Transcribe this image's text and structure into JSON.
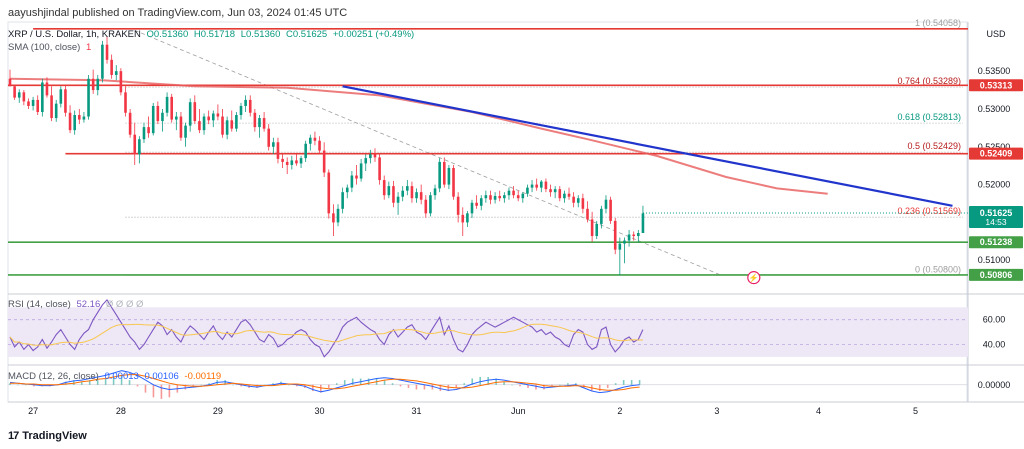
{
  "header": {
    "published": "aayushjindal published on TradingView.com, Jun 03, 2024 01:45 UTC"
  },
  "legend": {
    "symbol": "XRP / U.S. Dollar, 1h, KRAKEN",
    "open": "O0.51360",
    "high": "H0.51718",
    "low": "L0.51360",
    "close": "C0.51625",
    "change": "+0.00251 (+0.49%)",
    "sma_label": "SMA (100, close)",
    "sma_value": "1",
    "rsi_label": "RSI (14, close)",
    "rsi_value": "52.16",
    "rsi_extra": "Ø Ø Ø Ø",
    "macd_label": "MACD (12, 26, close)",
    "macd_v1": "0.00013",
    "macd_v2": "0.00106",
    "macd_v3": "-0.00119"
  },
  "brand": {
    "logo": "17",
    "name": "TradingView"
  },
  "currency": "USD",
  "colors": {
    "up": "#089981",
    "down": "#f23645",
    "sma": "#e85d5d",
    "trend": "#2135cc",
    "hline_red": "#e53935",
    "hline_green": "#43a047",
    "fib": "#9e9e9e",
    "rsi": "#7e57c2",
    "rsi_band": "#ede7f6",
    "macd": "#2962ff",
    "signal": "#ff6d00"
  },
  "chart_data": {
    "type": "candlestick",
    "title": "XRP / U.S. Dollar, 1h, KRAKEN",
    "ylim": [
      0.5058,
      0.5415
    ],
    "price_ticks": [
      {
        "value": 0.535,
        "label": "0.53500"
      },
      {
        "value": 0.53,
        "label": "0.53000"
      },
      {
        "value": 0.525,
        "label": "0.52500"
      },
      {
        "value": 0.52,
        "label": "0.52000"
      },
      {
        "value": 0.51,
        "label": "0.51000"
      }
    ],
    "x_ticks": [
      "27",
      "28",
      "29",
      "30",
      "31",
      "Jun",
      "2",
      "3",
      "4",
      "5"
    ],
    "x_tick_index": [
      5,
      24,
      45,
      67,
      88,
      110,
      132,
      153,
      175,
      196
    ],
    "candles": [
      [
        0.534,
        0.5352,
        0.533,
        0.533
      ],
      [
        0.533,
        0.5332,
        0.5312,
        0.5315
      ],
      [
        0.5315,
        0.5326,
        0.5308,
        0.5322
      ],
      [
        0.5322,
        0.5325,
        0.5305,
        0.531
      ],
      [
        0.531,
        0.5314,
        0.53,
        0.5304
      ],
      [
        0.5304,
        0.5316,
        0.5298,
        0.5312
      ],
      [
        0.5312,
        0.5318,
        0.5292,
        0.5296
      ],
      [
        0.5296,
        0.534,
        0.529,
        0.5335
      ],
      [
        0.5335,
        0.5342,
        0.5315,
        0.5318
      ],
      [
        0.5318,
        0.533,
        0.5284,
        0.5288
      ],
      [
        0.5288,
        0.5312,
        0.5283,
        0.5307
      ],
      [
        0.5307,
        0.533,
        0.5302,
        0.5326
      ],
      [
        0.5326,
        0.5331,
        0.529,
        0.5295
      ],
      [
        0.5295,
        0.5305,
        0.5268,
        0.5272
      ],
      [
        0.5272,
        0.5298,
        0.5266,
        0.5292
      ],
      [
        0.5292,
        0.53,
        0.528,
        0.5286
      ],
      [
        0.5286,
        0.5296,
        0.5282,
        0.529
      ],
      [
        0.529,
        0.5345,
        0.5286,
        0.534
      ],
      [
        0.534,
        0.5352,
        0.532,
        0.5325
      ],
      [
        0.5325,
        0.5345,
        0.5318,
        0.534
      ],
      [
        0.534,
        0.539,
        0.5335,
        0.5385
      ],
      [
        0.5385,
        0.5396,
        0.536,
        0.5365
      ],
      [
        0.5365,
        0.5372,
        0.534,
        0.5345
      ],
      [
        0.5345,
        0.5358,
        0.5338,
        0.535
      ],
      [
        0.535,
        0.5354,
        0.5318,
        0.5322
      ],
      [
        0.5322,
        0.533,
        0.529,
        0.5295
      ],
      [
        0.5295,
        0.53,
        0.5262,
        0.5266
      ],
      [
        0.5266,
        0.5282,
        0.5226,
        0.524
      ],
      [
        0.524,
        0.5264,
        0.5228,
        0.526
      ],
      [
        0.526,
        0.5282,
        0.5255,
        0.5276
      ],
      [
        0.5276,
        0.529,
        0.5262,
        0.5268
      ],
      [
        0.5268,
        0.5308,
        0.5265,
        0.5304
      ],
      [
        0.5304,
        0.531,
        0.528,
        0.5284
      ],
      [
        0.5284,
        0.53,
        0.527,
        0.5295
      ],
      [
        0.5295,
        0.5322,
        0.529,
        0.5316
      ],
      [
        0.5316,
        0.532,
        0.5282,
        0.5286
      ],
      [
        0.5286,
        0.5296,
        0.5272,
        0.529
      ],
      [
        0.529,
        0.5296,
        0.5258,
        0.5262
      ],
      [
        0.5262,
        0.5282,
        0.525,
        0.5278
      ],
      [
        0.5278,
        0.5314,
        0.527,
        0.5309
      ],
      [
        0.5309,
        0.5318,
        0.528,
        0.5284
      ],
      [
        0.5284,
        0.53,
        0.5268,
        0.5272
      ],
      [
        0.5272,
        0.5294,
        0.5266,
        0.529
      ],
      [
        0.529,
        0.5298,
        0.528,
        0.5285
      ],
      [
        0.5285,
        0.5298,
        0.5276,
        0.5294
      ],
      [
        0.5294,
        0.5306,
        0.5285,
        0.529
      ],
      [
        0.529,
        0.53,
        0.5262,
        0.5266
      ],
      [
        0.5266,
        0.529,
        0.526,
        0.5285
      ],
      [
        0.5285,
        0.5298,
        0.527,
        0.5274
      ],
      [
        0.5274,
        0.5296,
        0.527,
        0.5292
      ],
      [
        0.5292,
        0.5308,
        0.5286,
        0.5304
      ],
      [
        0.5304,
        0.5318,
        0.5296,
        0.5312
      ],
      [
        0.5312,
        0.5318,
        0.529,
        0.5295
      ],
      [
        0.5295,
        0.53,
        0.527,
        0.5276
      ],
      [
        0.5276,
        0.5292,
        0.5262,
        0.5288
      ],
      [
        0.5288,
        0.5296,
        0.527,
        0.5274
      ],
      [
        0.5274,
        0.528,
        0.5245,
        0.525
      ],
      [
        0.525,
        0.5262,
        0.524,
        0.5256
      ],
      [
        0.5256,
        0.5262,
        0.5228,
        0.5234
      ],
      [
        0.5234,
        0.524,
        0.5222,
        0.523
      ],
      [
        0.523,
        0.5236,
        0.5214,
        0.5226
      ],
      [
        0.5226,
        0.5238,
        0.522,
        0.5232
      ],
      [
        0.5232,
        0.524,
        0.5225,
        0.5228
      ],
      [
        0.5228,
        0.5238,
        0.5222,
        0.5235
      ],
      [
        0.5235,
        0.5258,
        0.523,
        0.5254
      ],
      [
        0.5254,
        0.5266,
        0.5245,
        0.5262
      ],
      [
        0.5262,
        0.527,
        0.5252,
        0.5258
      ],
      [
        0.5258,
        0.5264,
        0.524,
        0.5245
      ],
      [
        0.5245,
        0.5256,
        0.521,
        0.5216
      ],
      [
        0.5216,
        0.522,
        0.5155,
        0.5162
      ],
      [
        0.5162,
        0.5174,
        0.5132,
        0.515
      ],
      [
        0.515,
        0.5174,
        0.5145,
        0.5168
      ],
      [
        0.5168,
        0.5196,
        0.5162,
        0.519
      ],
      [
        0.519,
        0.52,
        0.5182,
        0.5196
      ],
      [
        0.5196,
        0.5218,
        0.519,
        0.5212
      ],
      [
        0.5212,
        0.5226,
        0.52,
        0.5208
      ],
      [
        0.5208,
        0.5234,
        0.5204,
        0.5228
      ],
      [
        0.5228,
        0.524,
        0.5218,
        0.5235
      ],
      [
        0.5235,
        0.5246,
        0.5228,
        0.524
      ],
      [
        0.524,
        0.5248,
        0.523,
        0.5236
      ],
      [
        0.5236,
        0.524,
        0.52,
        0.5206
      ],
      [
        0.5206,
        0.5212,
        0.518,
        0.5186
      ],
      [
        0.5186,
        0.5204,
        0.5182,
        0.5198
      ],
      [
        0.5198,
        0.5205,
        0.517,
        0.5176
      ],
      [
        0.5176,
        0.519,
        0.516,
        0.5184
      ],
      [
        0.5184,
        0.5198,
        0.5178,
        0.5192
      ],
      [
        0.5192,
        0.5206,
        0.5186,
        0.5198
      ],
      [
        0.5198,
        0.5204,
        0.5176,
        0.5182
      ],
      [
        0.5182,
        0.5195,
        0.5176,
        0.519
      ],
      [
        0.519,
        0.52,
        0.5174,
        0.518
      ],
      [
        0.518,
        0.5186,
        0.5156,
        0.5162
      ],
      [
        0.5162,
        0.519,
        0.5158,
        0.5186
      ],
      [
        0.5186,
        0.52,
        0.518,
        0.5195
      ],
      [
        0.5195,
        0.5235,
        0.519,
        0.523
      ],
      [
        0.523,
        0.5236,
        0.5196,
        0.52
      ],
      [
        0.52,
        0.5226,
        0.5194,
        0.5222
      ],
      [
        0.5222,
        0.5226,
        0.518,
        0.5184
      ],
      [
        0.5184,
        0.519,
        0.515,
        0.516
      ],
      [
        0.516,
        0.517,
        0.5132,
        0.515
      ],
      [
        0.515,
        0.5165,
        0.5144,
        0.5162
      ],
      [
        0.5162,
        0.518,
        0.5156,
        0.5176
      ],
      [
        0.5176,
        0.5186,
        0.5168,
        0.5172
      ],
      [
        0.5172,
        0.5186,
        0.5166,
        0.5182
      ],
      [
        0.5182,
        0.5192,
        0.5176,
        0.5186
      ],
      [
        0.5186,
        0.5192,
        0.5174,
        0.518
      ],
      [
        0.518,
        0.519,
        0.5175,
        0.5185
      ],
      [
        0.5185,
        0.5192,
        0.5178,
        0.5182
      ],
      [
        0.5182,
        0.519,
        0.5176,
        0.5186
      ],
      [
        0.5186,
        0.5196,
        0.518,
        0.5192
      ],
      [
        0.5192,
        0.5198,
        0.5182,
        0.5186
      ],
      [
        0.5186,
        0.5192,
        0.5178,
        0.5182
      ],
      [
        0.5182,
        0.519,
        0.5176,
        0.5188
      ],
      [
        0.5188,
        0.52,
        0.5184,
        0.5196
      ],
      [
        0.5196,
        0.5206,
        0.519,
        0.52
      ],
      [
        0.52,
        0.5208,
        0.5192,
        0.5196
      ],
      [
        0.5196,
        0.5206,
        0.519,
        0.5204
      ],
      [
        0.5204,
        0.5208,
        0.519,
        0.5194
      ],
      [
        0.5194,
        0.52,
        0.5184,
        0.519
      ],
      [
        0.519,
        0.5198,
        0.5182,
        0.5194
      ],
      [
        0.5194,
        0.5198,
        0.5178,
        0.5182
      ],
      [
        0.5182,
        0.5192,
        0.5176,
        0.5188
      ],
      [
        0.5188,
        0.5196,
        0.518,
        0.5184
      ],
      [
        0.5184,
        0.519,
        0.517,
        0.5176
      ],
      [
        0.5176,
        0.5186,
        0.517,
        0.5182
      ],
      [
        0.5182,
        0.5188,
        0.5162,
        0.5168
      ],
      [
        0.5168,
        0.5178,
        0.515,
        0.5154
      ],
      [
        0.5154,
        0.5164,
        0.5124,
        0.5132
      ],
      [
        0.5132,
        0.5152,
        0.5128,
        0.5148
      ],
      [
        0.5148,
        0.5172,
        0.5142,
        0.5168
      ],
      [
        0.5168,
        0.5186,
        0.5162,
        0.518
      ],
      [
        0.518,
        0.5184,
        0.5148,
        0.5152
      ],
      [
        0.5152,
        0.5156,
        0.5108,
        0.5114
      ],
      [
        0.5114,
        0.513,
        0.508,
        0.5122
      ],
      [
        0.5122,
        0.513,
        0.5096,
        0.5126
      ],
      [
        0.5126,
        0.514,
        0.5118,
        0.5134
      ],
      [
        0.5134,
        0.5138,
        0.5126,
        0.5132
      ],
      [
        0.5132,
        0.514,
        0.5124,
        0.5136
      ],
      [
        0.5136,
        0.5172,
        0.5136,
        0.5162
      ]
    ],
    "sma_100": [
      [
        0,
        0.534
      ],
      [
        20,
        0.5338
      ],
      [
        40,
        0.533
      ],
      [
        60,
        0.5328
      ],
      [
        80,
        0.5318
      ],
      [
        100,
        0.5296
      ],
      [
        115,
        0.5274
      ],
      [
        125,
        0.526
      ],
      [
        140,
        0.5238
      ],
      [
        155,
        0.521
      ],
      [
        166,
        0.5195
      ],
      [
        177,
        0.5188
      ]
    ],
    "trendline": {
      "from": [
        72,
        0.533
      ],
      "to": [
        204,
        0.5172
      ]
    },
    "horizontal_levels": [
      {
        "value": 0.5406,
        "label": "",
        "color": "red"
      },
      {
        "value": 0.53313,
        "label": "0.53313",
        "color": "red"
      },
      {
        "value": 0.52409,
        "label": "0.52409",
        "color": "red"
      },
      {
        "value": 0.51238,
        "label": "0.51238",
        "color": "green"
      },
      {
        "value": 0.50806,
        "label": "0.50806",
        "color": "green"
      }
    ],
    "fib_levels": [
      {
        "value": 0.54058,
        "label": "1 (0.54058)"
      },
      {
        "value": 0.53289,
        "label": "0.764 (0.53289)"
      },
      {
        "value": 0.52813,
        "label": "0.618 (0.52813)"
      },
      {
        "value": 0.52429,
        "label": "0.5 (0.52429)"
      },
      {
        "value": 0.51569,
        "label": "0.236 (0.51569)"
      },
      {
        "value": 0.508,
        "label": "0 (0.50800)"
      }
    ],
    "last_price": {
      "value": 0.51625,
      "label": "0.51625",
      "countdown": "14:53"
    },
    "rsi": {
      "ylim": [
        25,
        80
      ],
      "ticks": [
        "60.00",
        "40.00"
      ],
      "tick_values": [
        60,
        40
      ],
      "band": [
        30,
        70
      ],
      "points": [
        46,
        38,
        42,
        36,
        40,
        35,
        38,
        44,
        37,
        42,
        48,
        52,
        46,
        40,
        36,
        44,
        49,
        52,
        60,
        66,
        72,
        76,
        70,
        64,
        58,
        52,
        46,
        42,
        36,
        40,
        46,
        52,
        58,
        55,
        48,
        52,
        46,
        42,
        50,
        55,
        52,
        48,
        44,
        50,
        55,
        48,
        44,
        50,
        46,
        52,
        58,
        60,
        56,
        50,
        44,
        42,
        48,
        45,
        38,
        40,
        44,
        46,
        50,
        52,
        50,
        44,
        40,
        38,
        30,
        34,
        40,
        46,
        54,
        58,
        60,
        62,
        58,
        55,
        52,
        50,
        44,
        40,
        48,
        52,
        46,
        50,
        54,
        56,
        50,
        48,
        44,
        50,
        56,
        62,
        48,
        55,
        44,
        36,
        34,
        40,
        48,
        52,
        55,
        58,
        56,
        54,
        56,
        58,
        60,
        62,
        60,
        58,
        56,
        54,
        50,
        52,
        48,
        50,
        46,
        44,
        40,
        38,
        48,
        52,
        50,
        40,
        36,
        38,
        52,
        54,
        40,
        34,
        38,
        44,
        46,
        42,
        44,
        52
      ],
      "value": 52.16
    },
    "macd": {
      "ylim": [
        -0.0022,
        0.0024
      ],
      "tick": {
        "value": 0.0,
        "label": "0.00000"
      },
      "macd": [
        0.0003,
        0.0002,
        0.0001,
        0.0,
        -0.0001,
        -0.0001,
        0.0,
        0.0003,
        0.0005,
        0.0006,
        0.0008,
        0.001,
        0.0012,
        0.0015,
        0.0018,
        0.0016,
        0.0012,
        0.0006,
        0.0,
        -0.0004,
        -0.0006,
        -0.0005,
        -0.0004,
        -0.0003,
        -0.0002,
        0.0,
        0.0003,
        0.0004,
        0.0002,
        0.0,
        -0.0002,
        -0.0003,
        -0.0001,
        0.0,
        0.0002,
        0.0001,
        0.0,
        -0.0002,
        -0.0006,
        -0.0009,
        -0.0007,
        -0.0004,
        -0.0001,
        0.0002,
        0.0004,
        0.0006,
        0.0008,
        0.0009,
        0.0008,
        0.0006,
        0.0004,
        0.0002,
        0.0,
        -0.0002,
        -0.0005,
        -0.0007,
        -0.0006,
        -0.0003,
        0.0001,
        0.0004,
        0.0006,
        0.0007,
        0.0006,
        0.0004,
        0.0002,
        0.0,
        -0.0002,
        -0.0004,
        -0.0003,
        -0.0002,
        -0.0001,
        0.0,
        -0.0004,
        -0.0008,
        -0.001,
        -0.0009,
        -0.0006,
        -0.0003,
        -0.0001,
        0.0
      ],
      "signal": [
        0.0002,
        0.0002,
        0.0001,
        0.0001,
        0.0,
        0.0,
        0.0,
        0.0001,
        0.0002,
        0.0004,
        0.0005,
        0.0007,
        0.0008,
        0.001,
        0.0012,
        0.0013,
        0.0013,
        0.0011,
        0.0008,
        0.0005,
        0.0002,
        0.0,
        -0.0001,
        -0.0002,
        -0.0002,
        -0.0001,
        0.0,
        0.0001,
        0.0002,
        0.0001,
        0.0,
        -0.0001,
        -0.0001,
        -0.0001,
        0.0,
        0.0001,
        0.0001,
        0.0,
        -0.0002,
        -0.0004,
        -0.0005,
        -0.0005,
        -0.0004,
        -0.0002,
        0.0,
        0.0002,
        0.0004,
        0.0006,
        0.0007,
        0.0007,
        0.0006,
        0.0005,
        0.0003,
        0.0001,
        -0.0001,
        -0.0003,
        -0.0004,
        -0.0004,
        -0.0003,
        -0.0001,
        0.0001,
        0.0003,
        0.0004,
        0.0004,
        0.0003,
        0.0002,
        0.0001,
        -0.0001,
        -0.0002,
        -0.0002,
        -0.0002,
        -0.0001,
        -0.0002,
        -0.0004,
        -0.0006,
        -0.0007,
        -0.0007,
        -0.0006,
        -0.0004,
        -0.0003
      ]
    }
  }
}
